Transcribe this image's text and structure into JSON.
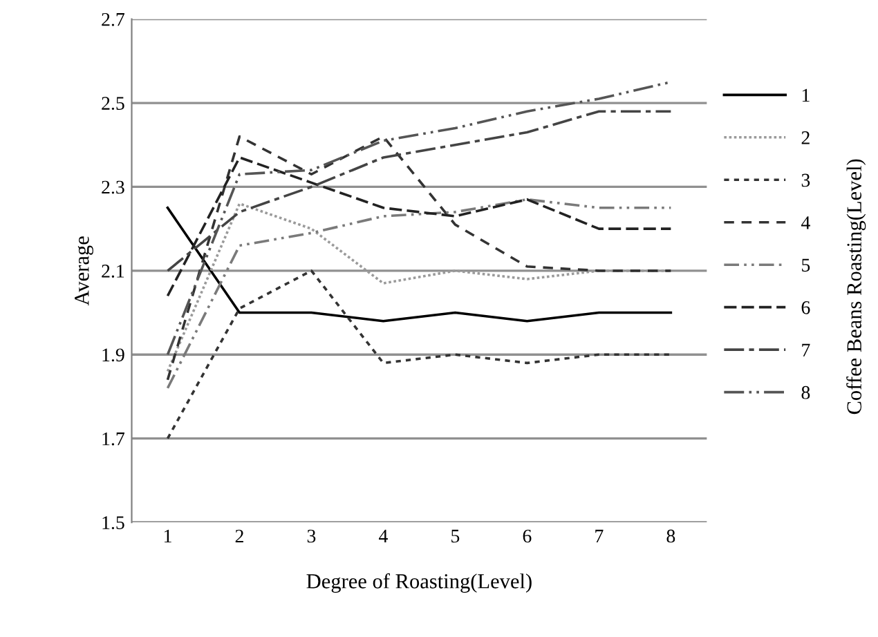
{
  "chart_data": {
    "type": "line",
    "xlabel": "Degree of Roasting(Level)",
    "ylabel": "Average",
    "legend_title": "Coffee Beans Roasting(Level)",
    "x": [
      1,
      2,
      3,
      4,
      5,
      6,
      7,
      8
    ],
    "xlim": [
      0.5,
      8.5
    ],
    "xticks": [
      1,
      2,
      3,
      4,
      5,
      6,
      7,
      8
    ],
    "ylim": [
      1.5,
      2.7
    ],
    "yticks": [
      1.5,
      1.7,
      1.9,
      2.1,
      2.3,
      2.5,
      2.7
    ],
    "grid": "y",
    "legend": "right",
    "marker": "none",
    "series": [
      {
        "name": "1",
        "color": "#000000",
        "line_style": "solid",
        "values": [
          2.25,
          2.0,
          2.0,
          1.98,
          2.0,
          1.98,
          2.0,
          2.0
        ]
      },
      {
        "name": "2",
        "color": "#9a9a9a",
        "line_style": "dotted",
        "values": [
          1.86,
          2.26,
          2.2,
          2.07,
          2.1,
          2.08,
          2.1,
          2.1
        ]
      },
      {
        "name": "3",
        "color": "#333333",
        "line_style": "dotted",
        "values": [
          1.7,
          2.01,
          2.1,
          1.88,
          1.9,
          1.88,
          1.9,
          1.9
        ]
      },
      {
        "name": "4",
        "color": "#333333",
        "line_style": "dashed",
        "values": [
          1.84,
          2.42,
          2.33,
          2.42,
          2.21,
          2.11,
          2.1,
          2.1
        ]
      },
      {
        "name": "5",
        "color": "#7a7a7a",
        "line_style": "dashed",
        "values": [
          1.82,
          2.16,
          2.19,
          2.23,
          2.24,
          2.27,
          2.25,
          2.25
        ]
      },
      {
        "name": "6",
        "color": "#222222",
        "line_style": "dashed",
        "values": [
          2.04,
          2.37,
          2.31,
          2.25,
          2.23,
          2.27,
          2.2,
          2.2
        ]
      },
      {
        "name": "7",
        "color": "#444444",
        "line_style": "dashed",
        "values": [
          2.1,
          2.24,
          2.3,
          2.37,
          2.4,
          2.43,
          2.48,
          2.48
        ]
      },
      {
        "name": "8",
        "color": "#555555",
        "line_style": "dashed",
        "values": [
          1.9,
          2.33,
          2.34,
          2.41,
          2.44,
          2.48,
          2.51,
          2.55
        ]
      }
    ]
  }
}
